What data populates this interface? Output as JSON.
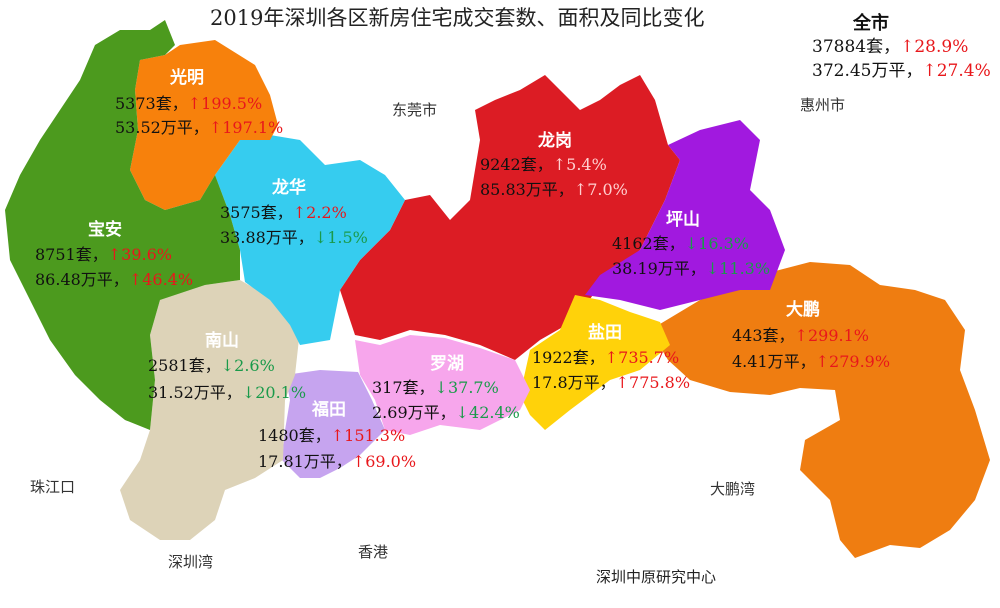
{
  "title": "2019年深圳各区新房住宅成交套数、面积及同比变化",
  "colors": {
    "guangming": "#f7810c",
    "baoan": "#4c9a1e",
    "longhua": "#36ccef",
    "longgang": "#dc1c24",
    "pingshan": "#a119df",
    "dapeng": "#ef7d11",
    "nanshan": "#ddd3b8",
    "futian": "#c6a4ef",
    "luohu": "#f7a6ec",
    "yantian": "#ffd20a",
    "up": "#e8171b",
    "down": "#1a9a4a"
  },
  "places": {
    "dongguan": "东莞市",
    "huizhou": "惠州市",
    "zhujiangkou": "珠江口",
    "shenzhenwan": "深圳湾",
    "xianggang": "香港",
    "dapengwan": "大鹏湾"
  },
  "credit": "深圳中原研究中心",
  "overall": {
    "name": "全市",
    "units": "37884套，",
    "units_arrow": "↑",
    "units_change": "28.9%",
    "area": "372.45万平，",
    "area_arrow": "↑",
    "area_change": "27.4%"
  },
  "districts": {
    "guangming": {
      "name": "光明",
      "units": "5373套，",
      "units_arrow": "↑",
      "units_change": "199.5%",
      "area": "53.52万平，",
      "area_arrow": "↑",
      "area_change": "197.1%"
    },
    "longhua": {
      "name": "龙华",
      "units": "3575套，",
      "units_arrow": "↑",
      "units_change": "2.2%",
      "area": "33.88万平，",
      "area_arrow": "↓",
      "area_change": "1.5%"
    },
    "baoan": {
      "name": "宝安",
      "units": "8751套，",
      "units_arrow": "↑",
      "units_change": "39.6%",
      "area": "86.48万平，",
      "area_arrow": "↑",
      "area_change": "46.4%"
    },
    "longgang": {
      "name": "龙岗",
      "units": "9242套，",
      "units_arrow": "↑",
      "units_change": "5.4%",
      "area": "85.83万平，",
      "area_arrow": "↑",
      "area_change": "7.0%"
    },
    "pingshan": {
      "name": "坪山",
      "units": "4162套，",
      "units_arrow": "↓",
      "units_change": "16.3%",
      "area": "38.19万平，",
      "area_arrow": "↓",
      "area_change": "11.3%"
    },
    "nanshan": {
      "name": "南山",
      "units": "2581套，",
      "units_arrow": "↓",
      "units_change": "2.6%",
      "area": "31.52万平，",
      "area_arrow": "↓",
      "area_change": "20.1%"
    },
    "luohu": {
      "name": "罗湖",
      "units": "317套，",
      "units_arrow": "↓",
      "units_change": "37.7%",
      "area": "2.69万平，",
      "area_arrow": "↓",
      "area_change": "42.4%"
    },
    "futian": {
      "name": "福田",
      "units": "1480套，",
      "units_arrow": "↑",
      "units_change": "151.3%",
      "area": "17.81万平，",
      "area_arrow": "↑",
      "area_change": "69.0%"
    },
    "yantian": {
      "name": "盐田",
      "units": "1922套，",
      "units_arrow": "↑",
      "units_change": "735.7%",
      "area": "17.8万平，",
      "area_arrow": "↑",
      "area_change": "775.8%"
    },
    "dapeng": {
      "name": "大鹏",
      "units": "443套，",
      "units_arrow": "↑",
      "units_change": "299.1%",
      "area": "4.41万平，",
      "area_arrow": "↑",
      "area_change": "279.9%"
    }
  }
}
